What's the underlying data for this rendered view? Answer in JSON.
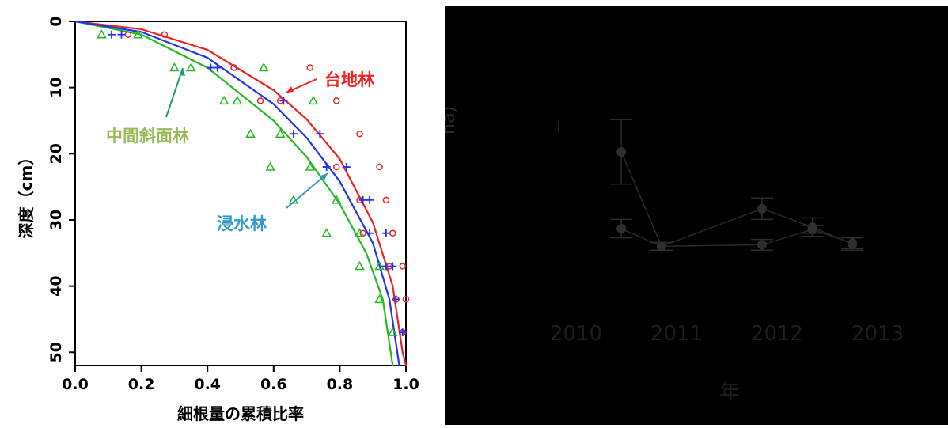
{
  "left_chart": {
    "ylabel": "深度（cm）",
    "xlabel": "細根量の累積比率"
  },
  "right_chart": {
    "ylabel_fragment": "ha)",
    "xlabel": "年"
  },
  "chart_data": [
    {
      "type": "scatter",
      "title": "",
      "xlabel": "細根量の累積比率",
      "ylabel": "深度（cm）",
      "xlim": [
        0,
        1
      ],
      "ylim": [
        52,
        0
      ],
      "y_reversed": true,
      "x_ticks": [
        "0.0",
        "0.2",
        "0.4",
        "0.6",
        "0.8",
        "1.0"
      ],
      "y_ticks": [
        "0",
        "10",
        "20",
        "30",
        "40",
        "50"
      ],
      "series": [
        {
          "name": "台地林",
          "color": "#ee2222",
          "marker": "circle",
          "points": [
            [
              0.16,
              2
            ],
            [
              0.27,
              2
            ],
            [
              0.48,
              7
            ],
            [
              0.71,
              7
            ],
            [
              0.56,
              12
            ],
            [
              0.62,
              12
            ],
            [
              0.79,
              12
            ],
            [
              0.86,
              17
            ],
            [
              0.79,
              22
            ],
            [
              0.92,
              22
            ],
            [
              0.86,
              27
            ],
            [
              0.94,
              27
            ],
            [
              0.87,
              32
            ],
            [
              0.96,
              32
            ],
            [
              0.95,
              37
            ],
            [
              0.99,
              37
            ],
            [
              0.97,
              42
            ],
            [
              1.0,
              42
            ],
            [
              0.99,
              47
            ]
          ],
          "curve": [
            [
              0,
              0
            ],
            [
              0.2,
              1.2
            ],
            [
              0.4,
              4.3
            ],
            [
              0.6,
              10.4
            ],
            [
              0.7,
              14.8
            ],
            [
              0.8,
              20.8
            ],
            [
              0.9,
              30.4
            ],
            [
              0.96,
              40
            ],
            [
              0.99,
              50
            ],
            [
              1.0,
              52
            ]
          ]
        },
        {
          "name": "中間斜面林",
          "color": "#22bb22",
          "marker": "triangle",
          "points": [
            [
              0.08,
              2
            ],
            [
              0.19,
              2
            ],
            [
              0.3,
              7
            ],
            [
              0.35,
              7
            ],
            [
              0.57,
              7
            ],
            [
              0.45,
              12
            ],
            [
              0.49,
              12
            ],
            [
              0.72,
              12
            ],
            [
              0.53,
              17
            ],
            [
              0.62,
              17
            ],
            [
              0.59,
              22
            ],
            [
              0.71,
              22
            ],
            [
              0.66,
              27
            ],
            [
              0.79,
              27
            ],
            [
              0.76,
              32
            ],
            [
              0.86,
              32
            ],
            [
              0.86,
              37
            ],
            [
              0.92,
              37
            ],
            [
              0.92,
              42
            ],
            [
              0.96,
              47
            ]
          ],
          "curve": [
            [
              0,
              0
            ],
            [
              0.2,
              2.0
            ],
            [
              0.4,
              7.0
            ],
            [
              0.6,
              15.0
            ],
            [
              0.7,
              20.5
            ],
            [
              0.8,
              27.6
            ],
            [
              0.88,
              35
            ],
            [
              0.93,
              42
            ],
            [
              0.96,
              52
            ]
          ]
        },
        {
          "name": "浸水林",
          "color": "#2233ee",
          "marker": "plus",
          "points": [
            [
              0.11,
              2
            ],
            [
              0.14,
              2
            ],
            [
              0.41,
              7
            ],
            [
              0.43,
              7
            ],
            [
              0.63,
              12
            ],
            [
              0.66,
              17
            ],
            [
              0.74,
              17
            ],
            [
              0.76,
              22
            ],
            [
              0.82,
              22
            ],
            [
              0.87,
              27
            ],
            [
              0.89,
              27
            ],
            [
              0.89,
              32
            ],
            [
              0.94,
              32
            ],
            [
              0.94,
              37
            ],
            [
              0.96,
              37
            ],
            [
              0.97,
              42
            ],
            [
              0.99,
              47
            ]
          ],
          "curve": [
            [
              0,
              0
            ],
            [
              0.2,
              1.6
            ],
            [
              0.4,
              5.5
            ],
            [
              0.6,
              12.5
            ],
            [
              0.7,
              17.6
            ],
            [
              0.8,
              24.2
            ],
            [
              0.9,
              33.5
            ],
            [
              0.95,
              42
            ],
            [
              0.98,
              52
            ]
          ]
        }
      ],
      "annotations": [
        {
          "text": "台地林",
          "color": "#ee2222"
        },
        {
          "text": "中間斜面林",
          "color": "#99bb55"
        },
        {
          "text": "浸水林",
          "color": "#3399cc"
        }
      ]
    },
    {
      "type": "line",
      "title": "",
      "xlabel": "年",
      "ylabel": "ha)",
      "x_ticks": [
        "2010",
        "2011",
        "2012",
        "2013"
      ],
      "background": "#000000",
      "series": [
        {
          "points": [
            [
              2010.45,
              21.2
            ],
            [
              2010.85,
              33.5
            ],
            [
              2011.85,
              28.6
            ],
            [
              2012.35,
              31.0
            ],
            [
              2012.75,
              33.2
            ]
          ],
          "error": [
            4.2,
            0.5,
            1.4,
            1.2,
            0.8
          ]
        },
        {
          "points": [
            [
              2010.45,
              31.2
            ],
            [
              2010.85,
              33.5
            ],
            [
              2011.85,
              33.3
            ],
            [
              2012.35,
              31.3
            ],
            [
              2012.75,
              33.1
            ]
          ],
          "error": [
            1.2,
            0.5,
            0.7,
            0.5,
            0.7
          ]
        }
      ]
    }
  ]
}
